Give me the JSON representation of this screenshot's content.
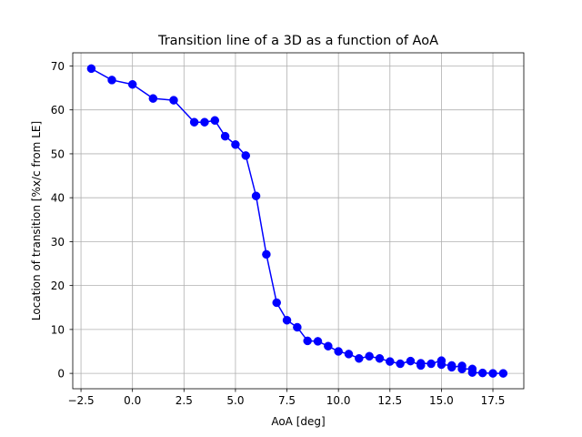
{
  "chart_data": {
    "type": "line",
    "title": "Transition line of a 3D as a function of AoA",
    "xlabel": "AoA [deg]",
    "ylabel": "Location of transition [%x/c from LE]",
    "xlim": [
      -2.9,
      19.0
    ],
    "ylim": [
      -3.5,
      73.0
    ],
    "xticks": [
      -2.5,
      0.0,
      2.5,
      5.0,
      7.5,
      10.0,
      12.5,
      15.0,
      17.5
    ],
    "xtick_labels": [
      "−2.5",
      "0.0",
      "2.5",
      "5.0",
      "7.5",
      "10.0",
      "12.5",
      "15.0",
      "17.5"
    ],
    "yticks": [
      0,
      10,
      20,
      30,
      40,
      50,
      60,
      70
    ],
    "ytick_labels": [
      "0",
      "10",
      "20",
      "30",
      "40",
      "50",
      "60",
      "70"
    ],
    "grid": true,
    "series": [
      {
        "color": "#0000ff",
        "marker": "circle",
        "x": [
          -2,
          -1,
          0,
          1,
          2,
          3,
          3.5,
          4,
          4.5,
          5,
          5.5,
          6,
          6.5,
          7,
          7.5,
          8,
          8.5,
          9,
          9.5,
          10,
          10.5,
          11,
          11.5,
          12,
          12.5,
          13,
          13.5,
          14,
          14,
          14.5,
          15,
          15,
          15.5,
          15.5,
          16,
          16,
          16.5,
          16.5,
          17,
          17.5,
          18
        ],
        "y": [
          69.4,
          66.8,
          65.8,
          62.6,
          62.2,
          57.2,
          57.2,
          57.6,
          54.0,
          52.1,
          49.6,
          40.4,
          27.1,
          16.1,
          12.1,
          10.5,
          7.4,
          7.3,
          6.2,
          5.0,
          4.4,
          3.4,
          3.9,
          3.4,
          2.7,
          2.2,
          2.8,
          1.8,
          2.3,
          2.2,
          2.9,
          2.0,
          1.8,
          1.4,
          1.7,
          1.0,
          1.0,
          0.2,
          0.1,
          0.0,
          0.0
        ]
      }
    ]
  }
}
